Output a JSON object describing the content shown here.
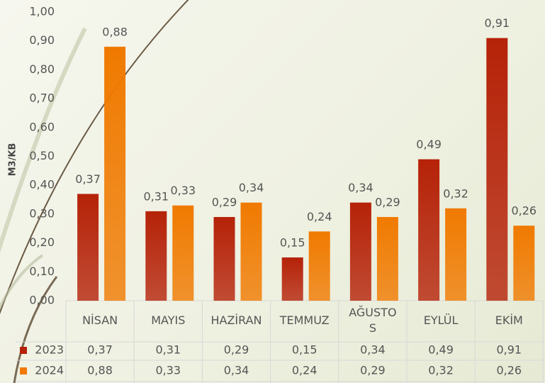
{
  "chart_data": {
    "type": "bar",
    "y_axis_label": "M3/KB",
    "categories": [
      "NİSAN",
      "MAYIS",
      "HAZİRAN",
      "TEMMUZ",
      "AĞUSTOS",
      "EYLÜL",
      "EKİM"
    ],
    "series": [
      {
        "name": "2023",
        "color": "#b52208",
        "values": [
          0.37,
          0.31,
          0.29,
          0.15,
          0.34,
          0.49,
          0.91
        ],
        "value_labels": [
          "0,37",
          "0,31",
          "0,29",
          "0,15",
          "0,34",
          "0,49",
          "0,91"
        ]
      },
      {
        "name": "2024",
        "color": "#f07a00",
        "values": [
          0.88,
          0.33,
          0.34,
          0.24,
          0.29,
          0.32,
          0.26
        ],
        "value_labels": [
          "0,88",
          "0,33",
          "0,34",
          "0,24",
          "0,29",
          "0,32",
          "0,26"
        ]
      }
    ],
    "ylim": [
      0,
      1
    ],
    "yticks": [
      {
        "value": 0,
        "label": "0,00"
      },
      {
        "value": 0.1,
        "label": "0,10"
      },
      {
        "value": 0.2,
        "label": "0,20"
      },
      {
        "value": 0.3,
        "label": "0,30"
      },
      {
        "value": 0.4,
        "label": "0,40"
      },
      {
        "value": 0.5,
        "label": "0,50"
      },
      {
        "value": 0.6,
        "label": "0,60"
      },
      {
        "value": 0.7,
        "label": "0,70"
      },
      {
        "value": 0.8,
        "label": "0,80"
      },
      {
        "value": 0.9,
        "label": "0,90"
      },
      {
        "value": 1,
        "label": "1,00"
      }
    ],
    "data_table": true
  }
}
